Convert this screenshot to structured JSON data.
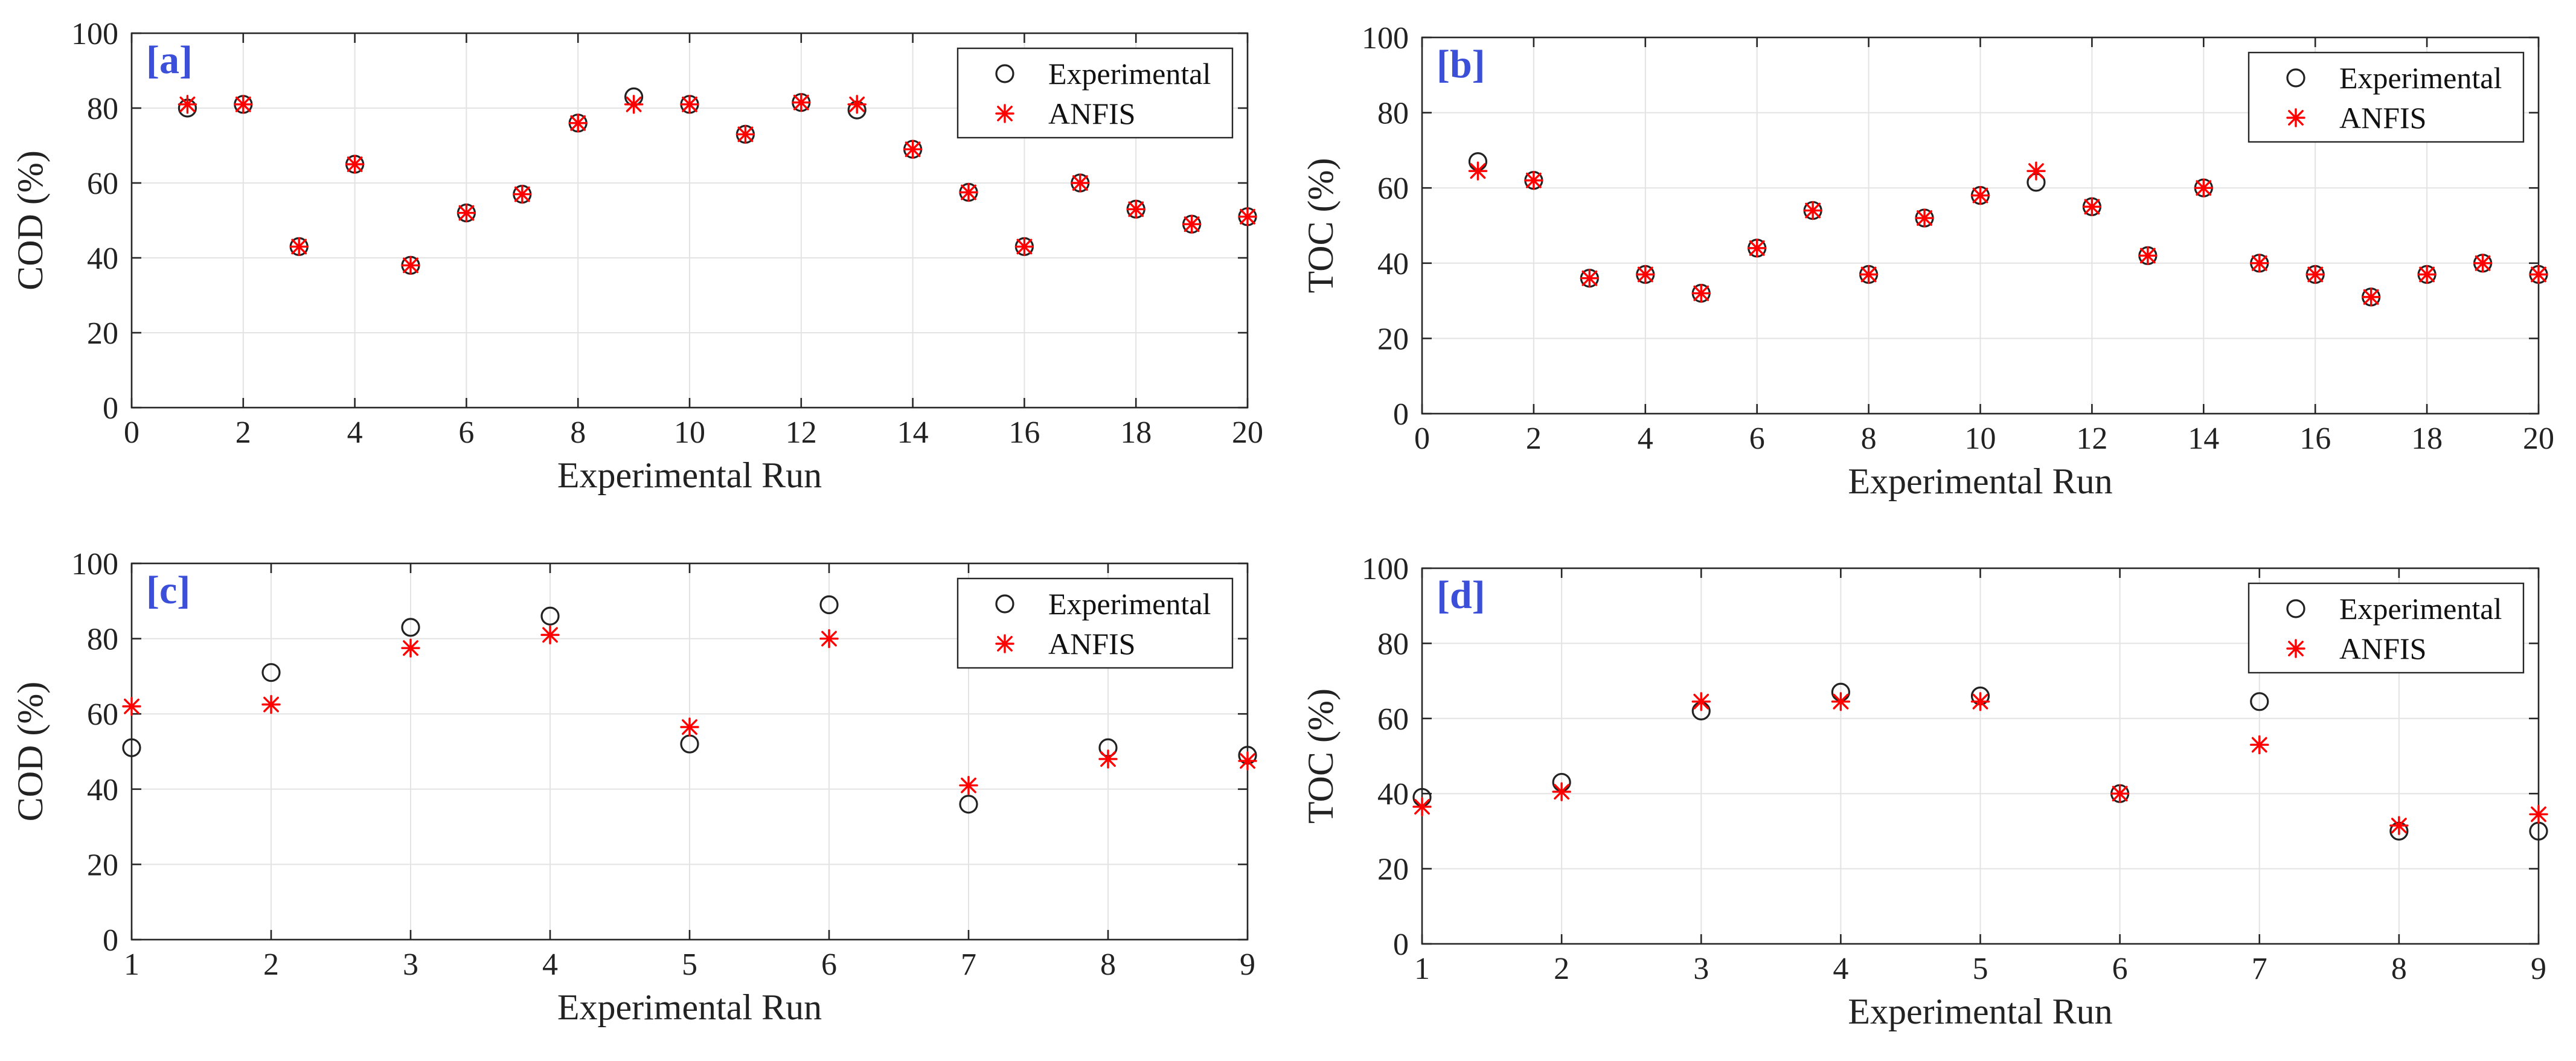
{
  "colors": {
    "experimental": "#222222",
    "anfis": "#ff0000",
    "panel_label": "#3b4fd8",
    "grid": "#e3e3e3",
    "axis": "#262626"
  },
  "chart_data": [
    {
      "id": "a",
      "type": "scatter",
      "panel_label": "[a]",
      "xlabel": "Experimental Run",
      "ylabel": "COD (%)",
      "xlim": [
        0,
        20
      ],
      "ylim": [
        0,
        100
      ],
      "xticks": [
        0,
        2,
        4,
        6,
        8,
        10,
        12,
        14,
        16,
        18,
        20
      ],
      "yticks": [
        0,
        20,
        40,
        60,
        80,
        100
      ],
      "legend_position": "top-right",
      "x": [
        1,
        2,
        3,
        4,
        5,
        6,
        7,
        8,
        9,
        10,
        11,
        12,
        13,
        14,
        15,
        16,
        17,
        18,
        19,
        20
      ],
      "series": [
        {
          "name": "Experimental",
          "marker": "circle",
          "values": [
            80,
            81,
            43,
            65,
            38,
            52,
            57,
            76,
            83,
            81,
            73,
            81.5,
            79.5,
            69,
            57.5,
            43,
            60,
            53,
            49,
            51
          ]
        },
        {
          "name": "ANFIS",
          "marker": "asterisk",
          "values": [
            81,
            81,
            43,
            65,
            38,
            52,
            57,
            76,
            81,
            81,
            73,
            81.5,
            81,
            69,
            57.5,
            43,
            60,
            53,
            49,
            51
          ]
        }
      ]
    },
    {
      "id": "b",
      "type": "scatter",
      "panel_label": "[b]",
      "xlabel": "Experimental Run",
      "ylabel": "TOC (%)",
      "xlim": [
        0,
        20
      ],
      "ylim": [
        0,
        100
      ],
      "xticks": [
        0,
        2,
        4,
        6,
        8,
        10,
        12,
        14,
        16,
        18,
        20
      ],
      "yticks": [
        0,
        20,
        40,
        60,
        80,
        100
      ],
      "legend_position": "top-right",
      "x": [
        1,
        2,
        3,
        4,
        5,
        6,
        7,
        8,
        9,
        10,
        11,
        12,
        13,
        14,
        15,
        16,
        17,
        18,
        19,
        20
      ],
      "series": [
        {
          "name": "Experimental",
          "marker": "circle",
          "values": [
            67,
            62,
            36,
            37,
            32,
            44,
            54,
            37,
            52,
            58,
            61.5,
            55,
            42,
            60,
            40,
            37,
            31,
            37,
            40,
            37
          ]
        },
        {
          "name": "ANFIS",
          "marker": "asterisk",
          "values": [
            64.5,
            62,
            36,
            37,
            32,
            44,
            54,
            37,
            52,
            58,
            64.5,
            55,
            42,
            60,
            40,
            37,
            31,
            37,
            40,
            37
          ]
        }
      ]
    },
    {
      "id": "c",
      "type": "scatter",
      "panel_label": "[c]",
      "xlabel": "Experimental Run",
      "ylabel": "COD (%)",
      "xlim": [
        1,
        9
      ],
      "ylim": [
        0,
        100
      ],
      "xticks": [
        1,
        2,
        3,
        4,
        5,
        6,
        7,
        8,
        9
      ],
      "yticks": [
        0,
        20,
        40,
        60,
        80,
        100
      ],
      "legend_position": "top-right",
      "x": [
        1,
        2,
        3,
        4,
        5,
        6,
        7,
        8,
        9
      ],
      "series": [
        {
          "name": "Experimental",
          "marker": "circle",
          "values": [
            51,
            71,
            83,
            86,
            52,
            89,
            36,
            51,
            49
          ]
        },
        {
          "name": "ANFIS",
          "marker": "asterisk",
          "values": [
            62,
            62.5,
            77.5,
            81,
            56.5,
            80,
            41,
            48,
            47.5
          ]
        }
      ]
    },
    {
      "id": "d",
      "type": "scatter",
      "panel_label": "[d]",
      "xlabel": "Experimental Run",
      "ylabel": "TOC (%)",
      "xlim": [
        1,
        9
      ],
      "ylim": [
        0,
        100
      ],
      "xticks": [
        1,
        2,
        3,
        4,
        5,
        6,
        7,
        8,
        9
      ],
      "yticks": [
        0,
        20,
        40,
        60,
        80,
        100
      ],
      "legend_position": "top-right",
      "x": [
        1,
        2,
        3,
        4,
        5,
        6,
        7,
        8,
        9
      ],
      "series": [
        {
          "name": "Experimental",
          "marker": "circle",
          "values": [
            39,
            43,
            62,
            67,
            66,
            40,
            64.5,
            30,
            30
          ]
        },
        {
          "name": "ANFIS",
          "marker": "asterisk",
          "values": [
            36.5,
            40.5,
            64.5,
            64.5,
            64.5,
            40,
            53,
            31.5,
            34.5
          ]
        }
      ]
    }
  ]
}
